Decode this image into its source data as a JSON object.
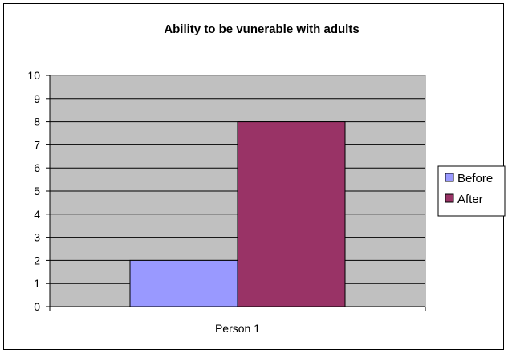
{
  "chart_data": {
    "type": "bar",
    "title": "Ability to be vunerable with adults",
    "xlabel": "",
    "ylabel": "",
    "categories": [
      "Person 1"
    ],
    "series": [
      {
        "name": "Before",
        "values": [
          2
        ],
        "color": "#9999ff"
      },
      {
        "name": "After",
        "values": [
          8
        ],
        "color": "#993366"
      }
    ],
    "ylim": [
      0,
      10
    ],
    "yticks": [
      "0",
      "1",
      "2",
      "3",
      "4",
      "5",
      "6",
      "7",
      "8",
      "9",
      "10"
    ],
    "grid": true,
    "plot_background": "#c0c0c0",
    "legend_position": "right"
  }
}
